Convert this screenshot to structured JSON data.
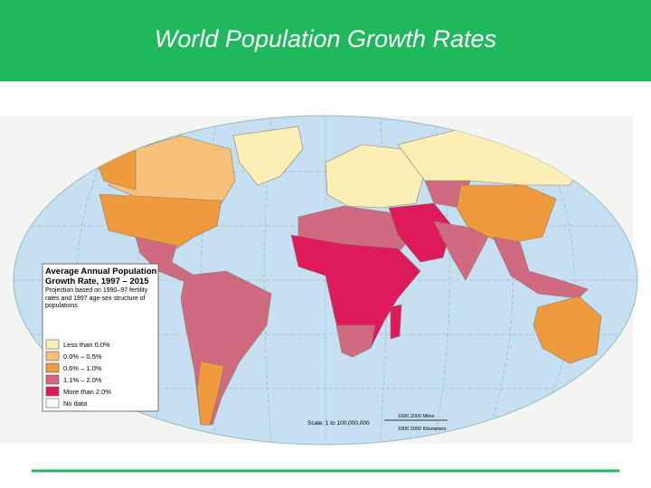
{
  "header": {
    "title": "World Population Growth Rates"
  },
  "legend": {
    "title": "Average Annual Population Growth Rate, 1997 – 2015",
    "note": "Projection based on 1990–97 fertility rates and 1997 age-sex structure of populations",
    "items": [
      {
        "label": "Less than 0.0%",
        "color": "#fbefb5"
      },
      {
        "label": "0.0% – 0.5%",
        "color": "#f7c07a"
      },
      {
        "label": "0.6% – 1.0%",
        "color": "#ee9a3d"
      },
      {
        "label": "1.1% – 2.0%",
        "color": "#cf6a80"
      },
      {
        "label": "More than 2.0%",
        "color": "#df1a5c"
      },
      {
        "label": "No data",
        "color": "#ffffff"
      }
    ]
  },
  "scale": {
    "label": "Scale: 1 to 100,000,000",
    "miles": "1000   2000 Miles",
    "kilometers": "1000   2000 Kilometers"
  }
}
